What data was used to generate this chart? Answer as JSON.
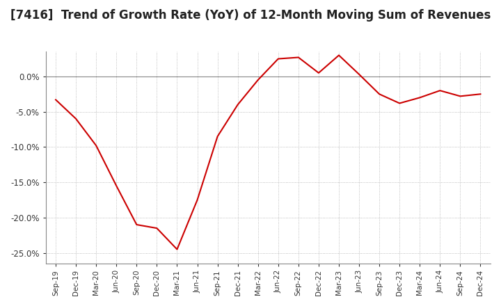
{
  "title": "[7416]  Trend of Growth Rate (YoY) of 12-Month Moving Sum of Revenues",
  "title_fontsize": 12,
  "line_color": "#cc0000",
  "background_color": "#ffffff",
  "plot_bg_color": "#ffffff",
  "grid_color": "#aaaaaa",
  "ylim": [
    -0.265,
    0.035
  ],
  "yticks": [
    0.0,
    -0.05,
    -0.1,
    -0.15,
    -0.2,
    -0.25
  ],
  "x_labels": [
    "Sep-19",
    "Dec-19",
    "Mar-20",
    "Jun-20",
    "Sep-20",
    "Dec-20",
    "Mar-21",
    "Jun-21",
    "Sep-21",
    "Dec-21",
    "Mar-22",
    "Jun-22",
    "Sep-22",
    "Dec-22",
    "Mar-23",
    "Jun-23",
    "Sep-23",
    "Dec-23",
    "Mar-24",
    "Jun-24",
    "Sep-24",
    "Dec-24"
  ],
  "values": [
    -0.033,
    -0.06,
    -0.098,
    -0.155,
    -0.21,
    -0.215,
    -0.245,
    -0.175,
    -0.085,
    -0.04,
    -0.005,
    0.025,
    0.027,
    0.005,
    0.03,
    0.003,
    -0.025,
    -0.038,
    -0.03,
    -0.02,
    -0.028,
    -0.025
  ]
}
